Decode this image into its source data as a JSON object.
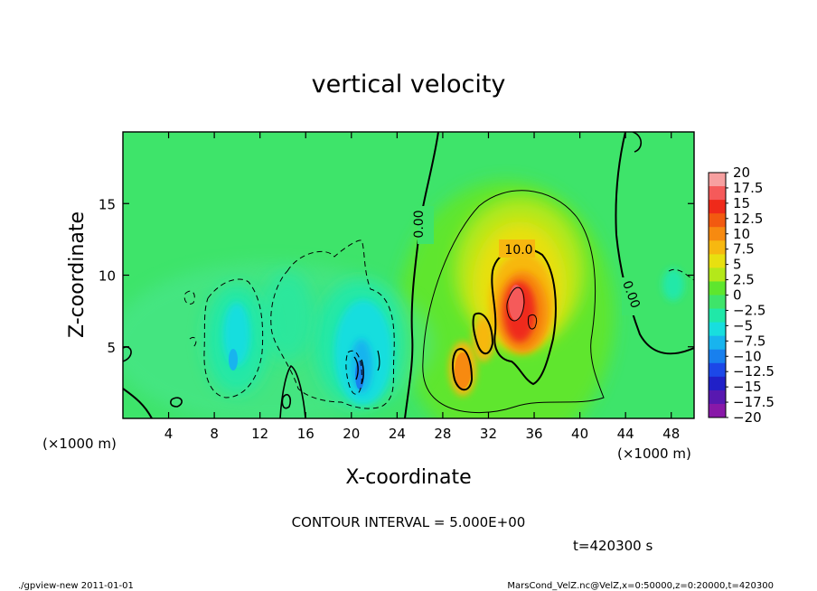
{
  "chart_data": {
    "type": "heatmap",
    "title": "vertical velocity",
    "xlabel": "X-coordinate",
    "ylabel": "Z-coordinate",
    "x_unit_left": "(×1000 m)",
    "x_unit_right": "(×1000 m)",
    "xlim": [
      0,
      50
    ],
    "ylim": [
      0,
      20
    ],
    "x_ticks": [
      "4",
      "8",
      "12",
      "16",
      "20",
      "24",
      "28",
      "32",
      "36",
      "40",
      "44",
      "48"
    ],
    "y_ticks": [
      "5",
      "10",
      "15"
    ],
    "colorbar_labels": [
      "20",
      "17.5",
      "15",
      "12.5",
      "10",
      "7.5",
      "5",
      "2.5",
      "0",
      "-2.5",
      "-5",
      "-7.5",
      "-10",
      "-12.5",
      "-15",
      "-17.5",
      "-20"
    ],
    "colorbar_colors": [
      "#f7a0a0",
      "#f55a5a",
      "#ef2a1a",
      "#f25a10",
      "#f78a10",
      "#f7b810",
      "#e8e010",
      "#b4e81a",
      "#5ee62e",
      "#3ee46a",
      "#20e8a8",
      "#18dede",
      "#18b4ee",
      "#1880ee",
      "#1c48e8",
      "#2020c8",
      "#5818b0",
      "#8818a8"
    ],
    "contour_labels": [
      "0.00",
      "0.00",
      "10.0"
    ],
    "contour_interval": "CONTOUR INTERVAL = 5.000E+00",
    "time": "t=420300 s",
    "features": [
      {
        "type": "updraft",
        "x": 34.5,
        "z": 8.0,
        "w_max": 18
      },
      {
        "type": "updraft",
        "x": 29.8,
        "z": 3.5,
        "w_max": 11
      },
      {
        "type": "downdraft",
        "x": 20.5,
        "z": 3.0,
        "w_min": -12
      },
      {
        "type": "downdraft",
        "x": 10.0,
        "z": 5.5,
        "w_min": -6
      }
    ]
  },
  "footer": {
    "left": "./gpview-new   2011-01-01",
    "right": "MarsCond_VelZ.nc@VelZ,x=0:50000,z=0:20000,t=420300"
  }
}
